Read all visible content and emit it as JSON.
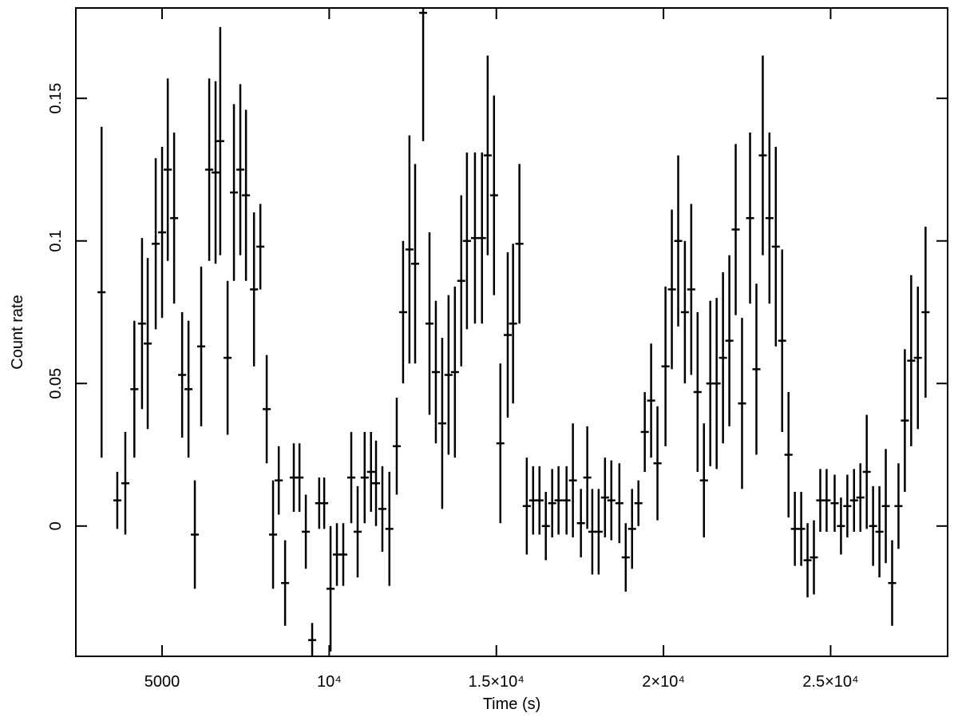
{
  "chart_data": {
    "type": "errorbar",
    "xlabel": "Time (s)",
    "ylabel": "Count rate",
    "xlim": [
      2420,
      28500
    ],
    "ylim": [
      -0.0457,
      0.1817
    ],
    "xticks": [
      5000,
      {
        "value": 10000,
        "label": "10⁴"
      },
      {
        "value": 15000,
        "label": "1.5×10⁴"
      },
      {
        "value": 20000,
        "label": "2×10⁴"
      },
      {
        "value": 25000,
        "label": "2.5×10⁴"
      }
    ],
    "yticks": [
      0,
      0.05,
      0.1,
      0.15
    ],
    "color": "#000000",
    "xerr": 120,
    "x": [
      3190,
      3660,
      3900,
      4170,
      4400,
      4570,
      4810,
      5000,
      5170,
      5360,
      5600,
      5790,
      5980,
      6170,
      6410,
      6600,
      6740,
      6960,
      7150,
      7340,
      7510,
      7750,
      7940,
      8130,
      8320,
      8490,
      8680,
      8940,
      9110,
      9300,
      9490,
      9700,
      9850,
      10040,
      10230,
      10420,
      10660,
      10850,
      11060,
      11250,
      11400,
      11590,
      11800,
      12020,
      12210,
      12400,
      12570,
      12810,
      13000,
      13190,
      13380,
      13570,
      13760,
      13950,
      14120,
      14360,
      14570,
      14740,
      14930,
      15120,
      15340,
      15500,
      15690,
      15910,
      16100,
      16290,
      16480,
      16670,
      16860,
      17100,
      17290,
      17530,
      17720,
      17870,
      18060,
      18250,
      18440,
      18680,
      18870,
      19060,
      19250,
      19440,
      19630,
      19820,
      20060,
      20250,
      20440,
      20640,
      20830,
      21020,
      21210,
      21400,
      21590,
      21780,
      21970,
      22160,
      22350,
      22590,
      22780,
      22970,
      23170,
      23360,
      23550,
      23740,
      23930,
      24120,
      24310,
      24500,
      24690,
      24880,
      25120,
      25310,
      25500,
      25700,
      25890,
      26080,
      26270,
      26460,
      26650,
      26840,
      27030,
      27220,
      27410,
      27610,
      27840
    ],
    "values": [
      0.082,
      0.009,
      0.015,
      0.048,
      0.071,
      0.064,
      0.099,
      0.103,
      0.125,
      0.108,
      0.053,
      0.048,
      -0.003,
      0.063,
      0.125,
      0.124,
      0.135,
      0.059,
      0.117,
      0.125,
      0.116,
      0.083,
      0.098,
      0.041,
      -0.003,
      0.016,
      -0.02,
      0.017,
      0.017,
      -0.002,
      -0.04,
      0.008,
      0.008,
      -0.022,
      -0.01,
      -0.01,
      0.017,
      -0.002,
      0.017,
      0.019,
      0.015,
      0.006,
      -0.001,
      0.028,
      0.075,
      0.097,
      0.092,
      0.18,
      0.071,
      0.054,
      0.036,
      0.053,
      0.054,
      0.086,
      0.1,
      0.101,
      0.101,
      0.13,
      0.116,
      0.029,
      0.067,
      0.071,
      0.099,
      0.007,
      0.009,
      0.009,
      0.0,
      0.008,
      0.009,
      0.009,
      0.016,
      0.001,
      0.017,
      -0.002,
      -0.002,
      0.01,
      0.009,
      0.008,
      -0.011,
      -0.001,
      0.008,
      0.033,
      0.044,
      0.022,
      0.056,
      0.083,
      0.1,
      0.075,
      0.083,
      0.047,
      0.016,
      0.05,
      0.05,
      0.059,
      0.065,
      0.104,
      0.043,
      0.108,
      0.055,
      0.13,
      0.108,
      0.098,
      0.065,
      0.025,
      -0.001,
      -0.001,
      -0.012,
      -0.011,
      0.009,
      0.009,
      0.008,
      0.0,
      0.007,
      0.009,
      0.01,
      0.019,
      0.0,
      -0.002,
      0.007,
      -0.02,
      0.007,
      0.037,
      0.058,
      0.059,
      0.075
    ],
    "yerr": [
      0.058,
      0.01,
      0.018,
      0.024,
      0.03,
      0.03,
      0.03,
      0.03,
      0.032,
      0.03,
      0.022,
      0.024,
      0.019,
      0.028,
      0.032,
      0.032,
      0.04,
      0.027,
      0.031,
      0.03,
      0.03,
      0.027,
      0.015,
      0.019,
      0.019,
      0.012,
      0.015,
      0.012,
      0.012,
      0.013,
      0.006,
      0.009,
      0.009,
      0.022,
      0.011,
      0.011,
      0.016,
      0.016,
      0.016,
      0.014,
      0.015,
      0.015,
      0.02,
      0.017,
      0.025,
      0.04,
      0.035,
      0.045,
      0.032,
      0.025,
      0.03,
      0.028,
      0.03,
      0.03,
      0.031,
      0.03,
      0.03,
      0.035,
      0.035,
      0.028,
      0.029,
      0.028,
      0.028,
      0.017,
      0.012,
      0.012,
      0.012,
      0.012,
      0.012,
      0.012,
      0.02,
      0.012,
      0.018,
      0.015,
      0.015,
      0.014,
      0.014,
      0.014,
      0.012,
      0.014,
      0.008,
      0.014,
      0.02,
      0.02,
      0.028,
      0.028,
      0.03,
      0.025,
      0.03,
      0.028,
      0.02,
      0.029,
      0.03,
      0.03,
      0.03,
      0.03,
      0.03,
      0.03,
      0.03,
      0.035,
      0.03,
      0.035,
      0.032,
      0.022,
      0.013,
      0.013,
      0.013,
      0.013,
      0.011,
      0.011,
      0.01,
      0.01,
      0.011,
      0.011,
      0.012,
      0.02,
      0.014,
      0.016,
      0.02,
      0.015,
      0.015,
      0.025,
      0.03,
      0.025,
      0.03
    ]
  }
}
